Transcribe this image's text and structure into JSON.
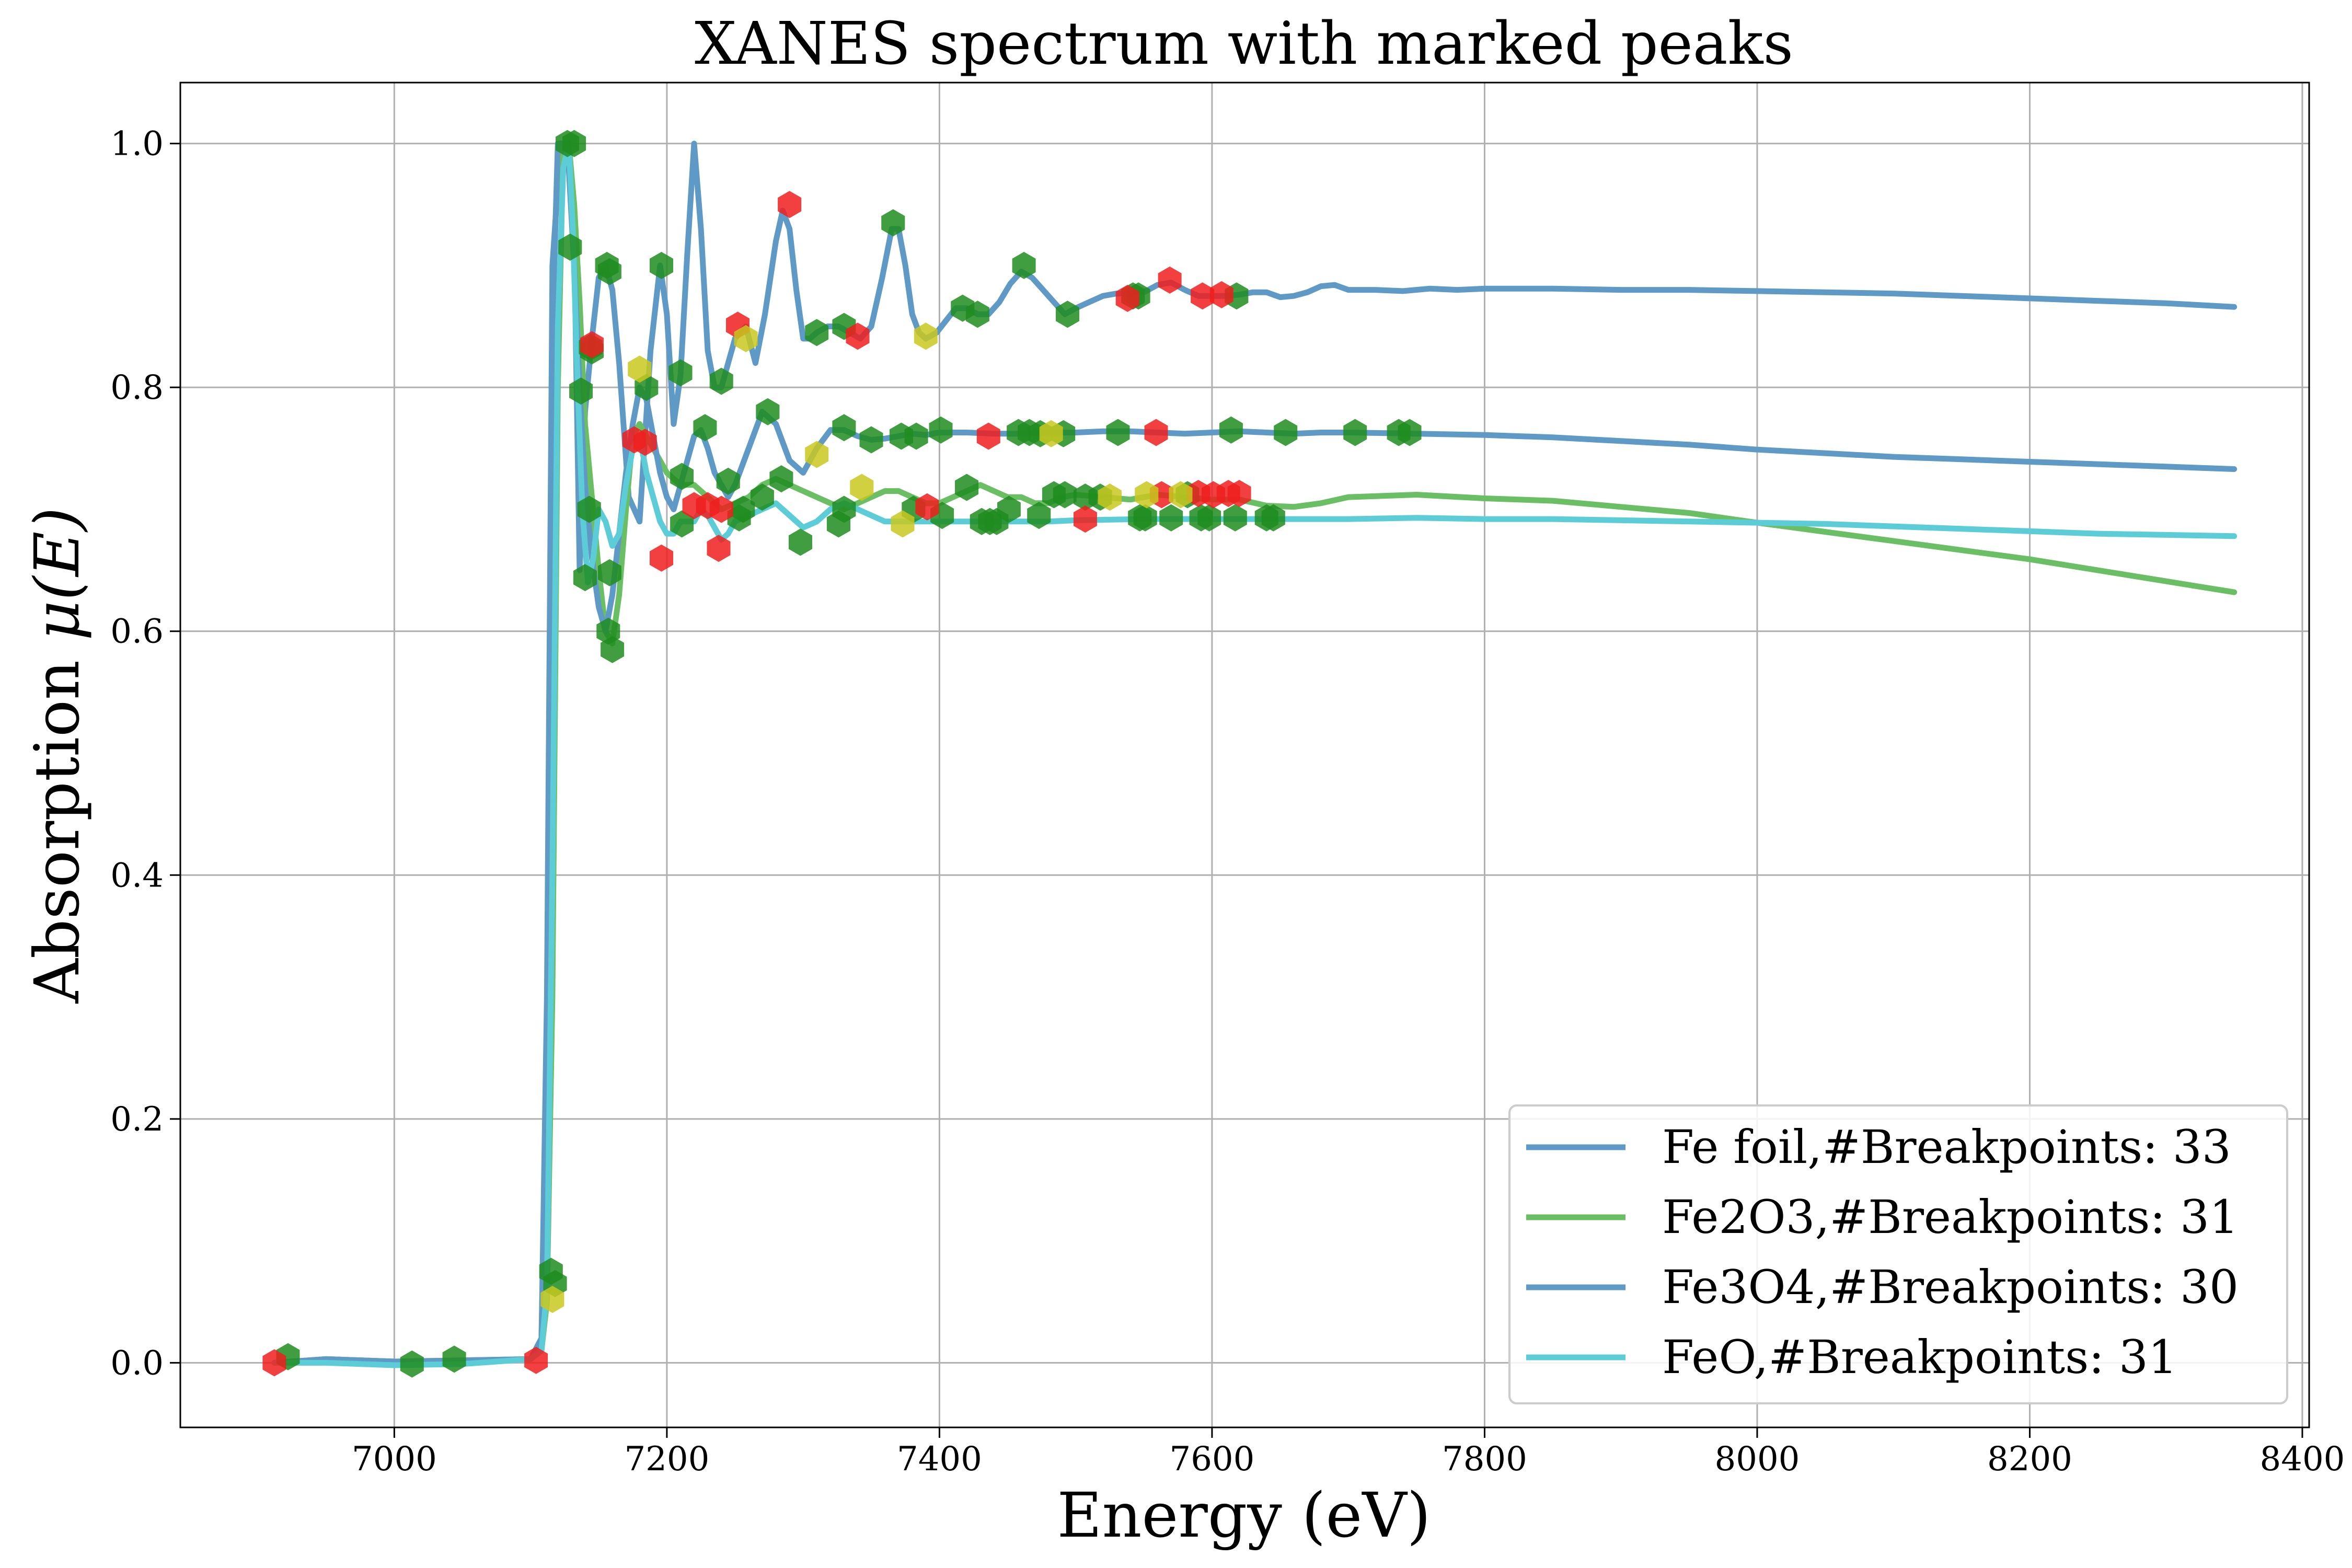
{
  "chart_data": {
    "type": "line",
    "title": "XANES spectrum with marked peaks",
    "xlabel": "Energy (eV)",
    "ylabel_text": "Absorption ",
    "ylabel_math": "μ(E)",
    "xlim": [
      6843,
      8405
    ],
    "ylim": [
      -0.053,
      1.05
    ],
    "xticks": [
      7000,
      7200,
      7400,
      7600,
      7800,
      8000,
      8200,
      8400
    ],
    "xtick_labels": [
      "7000",
      "7200",
      "7400",
      "7600",
      "7800",
      "8000",
      "8200",
      "8400"
    ],
    "yticks": [
      0.0,
      0.2,
      0.4,
      0.6,
      0.8,
      1.0
    ],
    "ytick_labels": [
      "0.0",
      "0.2",
      "0.4",
      "0.6",
      "0.8",
      "1.0"
    ],
    "grid": true,
    "legend_position": "lower-right",
    "series": [
      {
        "name": "Fe foil,#Breakpoints: 33",
        "color": "#5f9ac6",
        "x": [
          6912,
          6950,
          7000,
          7050,
          7100,
          7108,
          7112,
          7116,
          7122,
          7128,
          7132,
          7136,
          7140,
          7145,
          7150,
          7155,
          7160,
          7165,
          7172,
          7180,
          7188,
          7195,
          7200,
          7205,
          7210,
          7215,
          7220,
          7225,
          7230,
          7235,
          7240,
          7245,
          7250,
          7258,
          7265,
          7272,
          7280,
          7285,
          7290,
          7295,
          7300,
          7305,
          7310,
          7318,
          7326,
          7334,
          7342,
          7350,
          7358,
          7365,
          7370,
          7375,
          7380,
          7385,
          7390,
          7398,
          7405,
          7412,
          7420,
          7428,
          7436,
          7444,
          7452,
          7460,
          7468,
          7476,
          7484,
          7492,
          7500,
          7510,
          7520,
          7530,
          7540,
          7550,
          7560,
          7570,
          7580,
          7590,
          7600,
          7610,
          7620,
          7630,
          7640,
          7650,
          7660,
          7670,
          7680,
          7690,
          7700,
          7720,
          7740,
          7760,
          7780,
          7800,
          7850,
          7900,
          7950,
          8000,
          8050,
          8100,
          8150,
          8200,
          8250,
          8300,
          8350
        ],
        "y": [
          0.0,
          0.003,
          0.001,
          0.002,
          0.003,
          0.02,
          0.3,
          0.9,
          1.0,
          1.0,
          0.92,
          0.65,
          0.78,
          0.84,
          0.89,
          0.9,
          0.88,
          0.82,
          0.71,
          0.69,
          0.83,
          0.9,
          0.86,
          0.77,
          0.81,
          0.91,
          1.0,
          0.93,
          0.83,
          0.8,
          0.8,
          0.82,
          0.84,
          0.85,
          0.82,
          0.86,
          0.92,
          0.945,
          0.93,
          0.88,
          0.84,
          0.84,
          0.845,
          0.85,
          0.85,
          0.845,
          0.84,
          0.85,
          0.89,
          0.93,
          0.93,
          0.9,
          0.86,
          0.845,
          0.84,
          0.845,
          0.855,
          0.865,
          0.865,
          0.86,
          0.86,
          0.87,
          0.885,
          0.895,
          0.89,
          0.88,
          0.87,
          0.86,
          0.865,
          0.87,
          0.875,
          0.877,
          0.877,
          0.878,
          0.884,
          0.886,
          0.88,
          0.875,
          0.875,
          0.875,
          0.876,
          0.878,
          0.878,
          0.874,
          0.875,
          0.878,
          0.883,
          0.884,
          0.88,
          0.88,
          0.879,
          0.881,
          0.88,
          0.881,
          0.881,
          0.88,
          0.88,
          0.879,
          0.878,
          0.877,
          0.875,
          0.873,
          0.871,
          0.869,
          0.866
        ]
      },
      {
        "name": "Fe2O3,#Breakpoints: 31",
        "color": "#6abe63",
        "x": [
          6912,
          6950,
          7000,
          7050,
          7100,
          7108,
          7112,
          7116,
          7120,
          7124,
          7128,
          7132,
          7136,
          7140,
          7145,
          7150,
          7155,
          7160,
          7165,
          7170,
          7175,
          7180,
          7190,
          7200,
          7210,
          7220,
          7230,
          7240,
          7250,
          7260,
          7270,
          7280,
          7290,
          7300,
          7310,
          7320,
          7330,
          7340,
          7350,
          7360,
          7370,
          7380,
          7390,
          7400,
          7410,
          7420,
          7430,
          7440,
          7450,
          7460,
          7470,
          7480,
          7490,
          7500,
          7520,
          7540,
          7560,
          7580,
          7600,
          7620,
          7640,
          7660,
          7680,
          7700,
          7750,
          7800,
          7850,
          7900,
          7950,
          8000,
          8100,
          8200,
          8300,
          8350
        ],
        "y": [
          0.0,
          0.003,
          0.001,
          0.0,
          0.003,
          0.01,
          0.05,
          0.3,
          0.8,
          1.0,
          1.0,
          0.95,
          0.87,
          0.77,
          0.71,
          0.65,
          0.6,
          0.59,
          0.63,
          0.7,
          0.76,
          0.77,
          0.75,
          0.73,
          0.72,
          0.72,
          0.71,
          0.7,
          0.705,
          0.71,
          0.72,
          0.725,
          0.72,
          0.715,
          0.71,
          0.705,
          0.7,
          0.705,
          0.71,
          0.715,
          0.715,
          0.71,
          0.705,
          0.705,
          0.71,
          0.715,
          0.72,
          0.715,
          0.71,
          0.71,
          0.705,
          0.705,
          0.71,
          0.712,
          0.71,
          0.708,
          0.712,
          0.71,
          0.708,
          0.708,
          0.703,
          0.702,
          0.705,
          0.71,
          0.712,
          0.709,
          0.707,
          0.702,
          0.697,
          0.689,
          0.674,
          0.659,
          0.641,
          0.632
        ]
      },
      {
        "name": "Fe3O4,#Breakpoints: 30",
        "color": "#5f9ac6",
        "x": [
          6912,
          6950,
          7000,
          7050,
          7100,
          7108,
          7112,
          7116,
          7120,
          7124,
          7128,
          7132,
          7136,
          7140,
          7145,
          7150,
          7155,
          7160,
          7165,
          7170,
          7175,
          7180,
          7185,
          7190,
          7195,
          7200,
          7205,
          7210,
          7215,
          7220,
          7225,
          7230,
          7235,
          7240,
          7245,
          7250,
          7260,
          7270,
          7280,
          7290,
          7300,
          7310,
          7320,
          7330,
          7340,
          7350,
          7360,
          7370,
          7380,
          7390,
          7400,
          7420,
          7440,
          7460,
          7480,
          7500,
          7520,
          7540,
          7560,
          7580,
          7600,
          7620,
          7640,
          7660,
          7680,
          7700,
          7750,
          7800,
          7850,
          7900,
          7950,
          8000,
          8050,
          8100,
          8150,
          8200,
          8250,
          8300,
          8350
        ],
        "y": [
          0.0,
          0.003,
          0.001,
          0.002,
          0.003,
          0.02,
          0.25,
          0.85,
          1.0,
          1.0,
          0.98,
          0.9,
          0.8,
          0.72,
          0.66,
          0.62,
          0.6,
          0.63,
          0.68,
          0.73,
          0.77,
          0.8,
          0.79,
          0.76,
          0.73,
          0.71,
          0.7,
          0.72,
          0.74,
          0.76,
          0.765,
          0.75,
          0.73,
          0.72,
          0.71,
          0.72,
          0.75,
          0.78,
          0.77,
          0.74,
          0.73,
          0.75,
          0.765,
          0.765,
          0.76,
          0.757,
          0.758,
          0.76,
          0.762,
          0.761,
          0.763,
          0.763,
          0.762,
          0.762,
          0.763,
          0.763,
          0.764,
          0.764,
          0.763,
          0.762,
          0.763,
          0.764,
          0.763,
          0.762,
          0.763,
          0.763,
          0.762,
          0.761,
          0.759,
          0.756,
          0.753,
          0.749,
          0.746,
          0.743,
          0.741,
          0.739,
          0.737,
          0.735,
          0.733
        ]
      },
      {
        "name": "FeO,#Breakpoints: 31",
        "color": "#5ccdd6",
        "x": [
          6912,
          6950,
          7000,
          7050,
          7100,
          7108,
          7112,
          7116,
          7120,
          7124,
          7128,
          7131,
          7134,
          7138,
          7142,
          7146,
          7150,
          7155,
          7160,
          7165,
          7170,
          7175,
          7180,
          7185,
          7190,
          7195,
          7200,
          7205,
          7210,
          7215,
          7220,
          7225,
          7230,
          7235,
          7240,
          7245,
          7250,
          7260,
          7270,
          7280,
          7290,
          7300,
          7310,
          7320,
          7330,
          7340,
          7350,
          7360,
          7380,
          7400,
          7420,
          7440,
          7460,
          7480,
          7500,
          7550,
          7600,
          7650,
          7700,
          7750,
          7800,
          7850,
          7900,
          7950,
          8000,
          8050,
          8100,
          8150,
          8200,
          8250,
          8300,
          8350
        ],
        "y": [
          0.0,
          0.0,
          -0.002,
          -0.001,
          0.003,
          0.01,
          0.06,
          0.4,
          0.85,
          0.98,
          1.0,
          0.93,
          0.82,
          0.7,
          0.64,
          0.66,
          0.7,
          0.69,
          0.67,
          0.68,
          0.72,
          0.75,
          0.76,
          0.73,
          0.71,
          0.69,
          0.68,
          0.68,
          0.69,
          0.69,
          0.69,
          0.7,
          0.695,
          0.685,
          0.675,
          0.68,
          0.69,
          0.695,
          0.7,
          0.705,
          0.695,
          0.685,
          0.69,
          0.7,
          0.705,
          0.7,
          0.695,
          0.69,
          0.69,
          0.69,
          0.69,
          0.69,
          0.69,
          0.69,
          0.691,
          0.692,
          0.692,
          0.692,
          0.692,
          0.693,
          0.692,
          0.692,
          0.691,
          0.69,
          0.689,
          0.688,
          0.686,
          0.684,
          0.682,
          0.68,
          0.679,
          0.678
        ]
      }
    ],
    "markers": {
      "green": {
        "color": "#1f8c1f",
        "points": [
          [
            6922,
            0.005
          ],
          [
            7013,
            -0.001
          ],
          [
            7044,
            0.003
          ],
          [
            7115,
            0.075
          ],
          [
            7118,
            0.065
          ],
          [
            7127,
            1.0
          ],
          [
            7132,
            1.0
          ],
          [
            7129,
            0.915
          ],
          [
            7137,
            0.797
          ],
          [
            7140,
            0.644
          ],
          [
            7144,
            0.833
          ],
          [
            7145,
            0.83
          ],
          [
            7143,
            0.7
          ],
          [
            7156,
            0.9
          ],
          [
            7158,
            0.895
          ],
          [
            7157,
            0.6
          ],
          [
            7160,
            0.585
          ],
          [
            7158,
            0.648
          ],
          [
            7185,
            0.8
          ],
          [
            7196,
            0.9
          ],
          [
            7210,
            0.812
          ],
          [
            7211,
            0.727
          ],
          [
            7211,
            0.688
          ],
          [
            7228,
            0.767
          ],
          [
            7240,
            0.805
          ],
          [
            7245,
            0.723
          ],
          [
            7253,
            0.693
          ],
          [
            7256,
            0.7
          ],
          [
            7270,
            0.71
          ],
          [
            7274,
            0.78
          ],
          [
            7284,
            0.725
          ],
          [
            7298,
            0.673
          ],
          [
            7310,
            0.845
          ],
          [
            7326,
            0.688
          ],
          [
            7330,
            0.7
          ],
          [
            7330,
            0.767
          ],
          [
            7330,
            0.85
          ],
          [
            7350,
            0.757
          ],
          [
            7366,
            0.935
          ],
          [
            7372,
            0.76
          ],
          [
            7381,
            0.7
          ],
          [
            7383,
            0.76
          ],
          [
            7401,
            0.765
          ],
          [
            7402,
            0.695
          ],
          [
            7417,
            0.865
          ],
          [
            7420,
            0.718
          ],
          [
            7428,
            0.86
          ],
          [
            7431,
            0.69
          ],
          [
            7437,
            0.69
          ],
          [
            7442,
            0.69
          ],
          [
            7451,
            0.7
          ],
          [
            7458,
            0.763
          ],
          [
            7462,
            0.9
          ],
          [
            7466,
            0.763
          ],
          [
            7473,
            0.695
          ],
          [
            7474,
            0.762
          ],
          [
            7484,
            0.712
          ],
          [
            7491,
            0.762
          ],
          [
            7492,
            0.712
          ],
          [
            7494,
            0.86
          ],
          [
            7507,
            0.71
          ],
          [
            7518,
            0.71
          ],
          [
            7531,
            0.763
          ],
          [
            7542,
            0.875
          ],
          [
            7546,
            0.875
          ],
          [
            7547,
            0.693
          ],
          [
            7551,
            0.693
          ],
          [
            7570,
            0.693
          ],
          [
            7582,
            0.712
          ],
          [
            7592,
            0.693
          ],
          [
            7598,
            0.693
          ],
          [
            7614,
            0.765
          ],
          [
            7617,
            0.693
          ],
          [
            7618,
            0.875
          ],
          [
            7640,
            0.693
          ],
          [
            7645,
            0.693
          ],
          [
            7654,
            0.763
          ],
          [
            7705,
            0.763
          ],
          [
            7737,
            0.763
          ],
          [
            7745,
            0.763
          ]
        ]
      },
      "red": {
        "color": "#f01e1e",
        "points": [
          [
            6912,
            0.0
          ],
          [
            7104,
            0.002
          ],
          [
            7145,
            0.835
          ],
          [
            7176,
            0.757
          ],
          [
            7184,
            0.755
          ],
          [
            7196,
            0.66
          ],
          [
            7220,
            0.703
          ],
          [
            7230,
            0.703
          ],
          [
            7238,
            0.668
          ],
          [
            7240,
            0.7
          ],
          [
            7252,
            0.851
          ],
          [
            7290,
            0.95
          ],
          [
            7340,
            0.842
          ],
          [
            7391,
            0.702
          ],
          [
            7436,
            0.76
          ],
          [
            7507,
            0.692
          ],
          [
            7538,
            0.873
          ],
          [
            7559,
            0.763
          ],
          [
            7563,
            0.712
          ],
          [
            7569,
            0.888
          ],
          [
            7590,
            0.713
          ],
          [
            7593,
            0.875
          ],
          [
            7601,
            0.712
          ],
          [
            7607,
            0.876
          ],
          [
            7612,
            0.713
          ],
          [
            7620,
            0.713
          ]
        ]
      },
      "yellow": {
        "color": "#c8c81e",
        "points": [
          [
            7116,
            0.052
          ],
          [
            7180,
            0.815
          ],
          [
            7258,
            0.84
          ],
          [
            7310,
            0.745
          ],
          [
            7343,
            0.718
          ],
          [
            7373,
            0.688
          ],
          [
            7390,
            0.842
          ],
          [
            7482,
            0.762
          ],
          [
            7525,
            0.71
          ],
          [
            7552,
            0.712
          ],
          [
            7577,
            0.712
          ]
        ]
      }
    }
  }
}
